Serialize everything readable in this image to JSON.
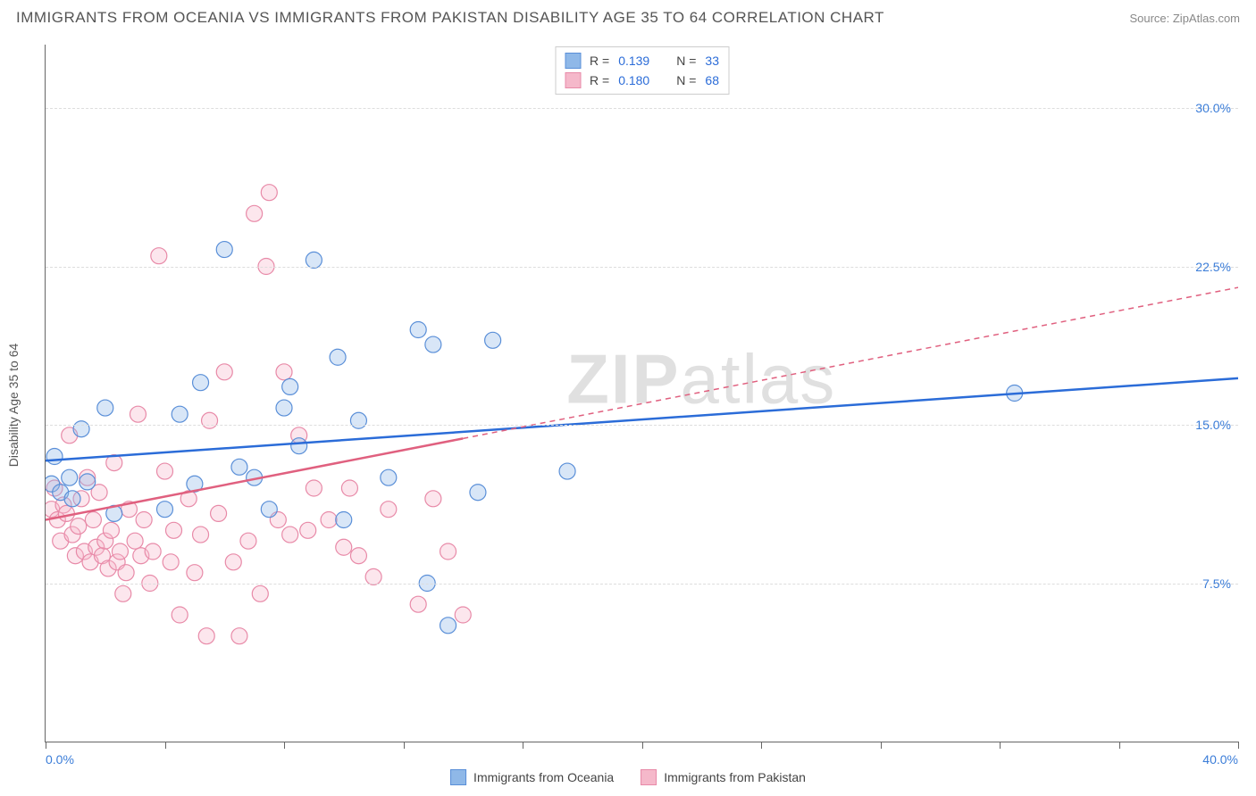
{
  "title": "IMMIGRANTS FROM OCEANIA VS IMMIGRANTS FROM PAKISTAN DISABILITY AGE 35 TO 64 CORRELATION CHART",
  "source": "Source: ZipAtlas.com",
  "watermark": "ZIPatlas",
  "chart": {
    "type": "scatter",
    "ylabel": "Disability Age 35 to 64",
    "xlim": [
      0,
      40
    ],
    "ylim": [
      0,
      33
    ],
    "xticks": [
      0,
      4,
      8,
      12,
      16,
      20,
      24,
      28,
      32,
      36,
      40
    ],
    "xtick_labels": {
      "0": "0.0%",
      "40": "40.0%"
    },
    "yticks": [
      7.5,
      15.0,
      22.5,
      30.0
    ],
    "ytick_labels": [
      "7.5%",
      "15.0%",
      "22.5%",
      "30.0%"
    ],
    "background_color": "#ffffff",
    "grid_color": "#dddddd",
    "axis_color": "#666666",
    "tick_label_color": "#3b7dd8",
    "marker_radius": 9,
    "marker_opacity": 0.35,
    "series": [
      {
        "id": "oceania",
        "name": "Immigrants from Oceania",
        "color_fill": "#8fb8e8",
        "color_stroke": "#5a8fd8",
        "r": "0.139",
        "n": "33",
        "trend": {
          "x1": 0,
          "y1": 13.3,
          "x2": 40,
          "y2": 17.2,
          "solid_until_x": 40,
          "color": "#2b6cd8"
        },
        "points": [
          [
            0.2,
            12.2
          ],
          [
            0.3,
            13.5
          ],
          [
            0.5,
            11.8
          ],
          [
            0.8,
            12.5
          ],
          [
            0.9,
            11.5
          ],
          [
            1.2,
            14.8
          ],
          [
            1.4,
            12.3
          ],
          [
            2.0,
            15.8
          ],
          [
            2.3,
            10.8
          ],
          [
            4.0,
            11.0
          ],
          [
            4.5,
            15.5
          ],
          [
            5.0,
            12.2
          ],
          [
            5.2,
            17.0
          ],
          [
            6.0,
            23.3
          ],
          [
            6.5,
            13.0
          ],
          [
            7.0,
            12.5
          ],
          [
            7.5,
            11.0
          ],
          [
            8.0,
            15.8
          ],
          [
            8.2,
            16.8
          ],
          [
            8.5,
            14.0
          ],
          [
            9.0,
            22.8
          ],
          [
            9.8,
            18.2
          ],
          [
            10.0,
            10.5
          ],
          [
            10.5,
            15.2
          ],
          [
            11.5,
            12.5
          ],
          [
            12.5,
            19.5
          ],
          [
            12.8,
            7.5
          ],
          [
            13.0,
            18.8
          ],
          [
            13.5,
            5.5
          ],
          [
            14.5,
            11.8
          ],
          [
            15.0,
            19.0
          ],
          [
            17.5,
            12.8
          ],
          [
            32.5,
            16.5
          ]
        ]
      },
      {
        "id": "pakistan",
        "name": "Immigrants from Pakistan",
        "color_fill": "#f5b8ca",
        "color_stroke": "#e88aa8",
        "r": "0.180",
        "n": "68",
        "trend": {
          "x1": 0,
          "y1": 10.5,
          "x2": 40,
          "y2": 21.5,
          "solid_until_x": 14,
          "color": "#e0607f"
        },
        "points": [
          [
            0.2,
            11.0
          ],
          [
            0.3,
            12.0
          ],
          [
            0.4,
            10.5
          ],
          [
            0.5,
            9.5
          ],
          [
            0.6,
            11.2
          ],
          [
            0.7,
            10.8
          ],
          [
            0.8,
            14.5
          ],
          [
            0.9,
            9.8
          ],
          [
            1.0,
            8.8
          ],
          [
            1.1,
            10.2
          ],
          [
            1.2,
            11.5
          ],
          [
            1.3,
            9.0
          ],
          [
            1.4,
            12.5
          ],
          [
            1.5,
            8.5
          ],
          [
            1.6,
            10.5
          ],
          [
            1.7,
            9.2
          ],
          [
            1.8,
            11.8
          ],
          [
            1.9,
            8.8
          ],
          [
            2.0,
            9.5
          ],
          [
            2.1,
            8.2
          ],
          [
            2.2,
            10.0
          ],
          [
            2.3,
            13.2
          ],
          [
            2.4,
            8.5
          ],
          [
            2.5,
            9.0
          ],
          [
            2.6,
            7.0
          ],
          [
            2.7,
            8.0
          ],
          [
            2.8,
            11.0
          ],
          [
            3.0,
            9.5
          ],
          [
            3.1,
            15.5
          ],
          [
            3.2,
            8.8
          ],
          [
            3.3,
            10.5
          ],
          [
            3.5,
            7.5
          ],
          [
            3.6,
            9.0
          ],
          [
            3.8,
            23.0
          ],
          [
            4.0,
            12.8
          ],
          [
            4.2,
            8.5
          ],
          [
            4.3,
            10.0
          ],
          [
            4.5,
            6.0
          ],
          [
            4.8,
            11.5
          ],
          [
            5.0,
            8.0
          ],
          [
            5.2,
            9.8
          ],
          [
            5.4,
            5.0
          ],
          [
            5.5,
            15.2
          ],
          [
            5.8,
            10.8
          ],
          [
            6.0,
            17.5
          ],
          [
            6.3,
            8.5
          ],
          [
            6.5,
            5.0
          ],
          [
            6.8,
            9.5
          ],
          [
            7.0,
            25.0
          ],
          [
            7.2,
            7.0
          ],
          [
            7.4,
            22.5
          ],
          [
            7.5,
            26.0
          ],
          [
            7.8,
            10.5
          ],
          [
            8.0,
            17.5
          ],
          [
            8.2,
            9.8
          ],
          [
            8.5,
            14.5
          ],
          [
            8.8,
            10.0
          ],
          [
            9.0,
            12.0
          ],
          [
            9.5,
            10.5
          ],
          [
            10.0,
            9.2
          ],
          [
            10.2,
            12.0
          ],
          [
            10.5,
            8.8
          ],
          [
            11.0,
            7.8
          ],
          [
            11.5,
            11.0
          ],
          [
            12.5,
            6.5
          ],
          [
            13.0,
            11.5
          ],
          [
            13.5,
            9.0
          ],
          [
            14.0,
            6.0
          ]
        ]
      }
    ]
  },
  "legend_top": {
    "r_label": "R  =",
    "n_label": "N   ="
  }
}
